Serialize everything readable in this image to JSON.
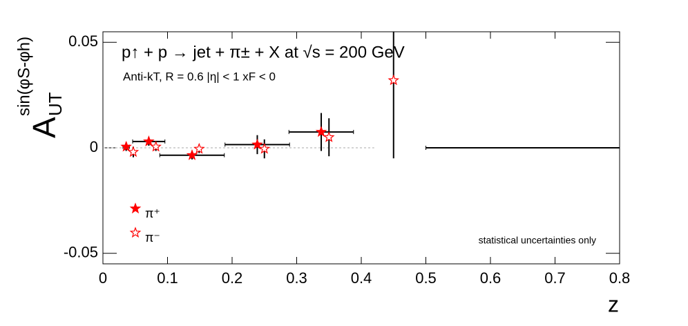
{
  "chart_data": {
    "type": "scatter",
    "title": "p↑ + p → jet + π± + X at √s = 200 GeV",
    "subtitle": "Anti-kT, R = 0.6   |η| < 1   xF < 0",
    "y_label": {
      "main": "A",
      "sub": "UT",
      "sup": "sin(φS-φh)"
    },
    "x_label": "z",
    "annotation": "statistical uncertainties only",
    "annotation_color": "#ff0000",
    "legend": "bottom-left",
    "xlim": [
      0,
      0.8
    ],
    "ylim": [
      -0.055,
      0.055
    ],
    "xticks": [
      0,
      0.1,
      0.2,
      0.3,
      0.4,
      0.5,
      0.6,
      0.7,
      0.8
    ],
    "yticks": [
      -0.05,
      0,
      0.05
    ],
    "series": [
      {
        "name": "π⁺",
        "color": "#ff0000",
        "marker": "filled",
        "x": [
          0.036,
          0.071,
          0.138,
          0.239,
          0.338,
          0.65
        ],
        "values": [
          0.0005,
          0.003,
          -0.0035,
          0.0015,
          0.0075,
          0
        ],
        "xerr": [
          0.005,
          0.025,
          0.05,
          0.05,
          0.05,
          0.15
        ],
        "yerr": [
          0.002,
          0.002,
          0.002,
          0.0045,
          0.009,
          0
        ]
      },
      {
        "name": "π⁻",
        "color": "#ff0000",
        "marker": "open",
        "x": [
          0.047,
          0.082,
          0.149,
          0.25,
          0.35,
          0.45
        ],
        "values": [
          -0.002,
          0.0005,
          -0.0005,
          -0.0005,
          0.005,
          0.032
        ],
        "xerr": [
          0,
          0,
          0,
          0,
          0,
          0
        ],
        "yerr": [
          0.0025,
          0.002,
          0.002,
          0.0045,
          0.009,
          0.037
        ]
      }
    ]
  }
}
